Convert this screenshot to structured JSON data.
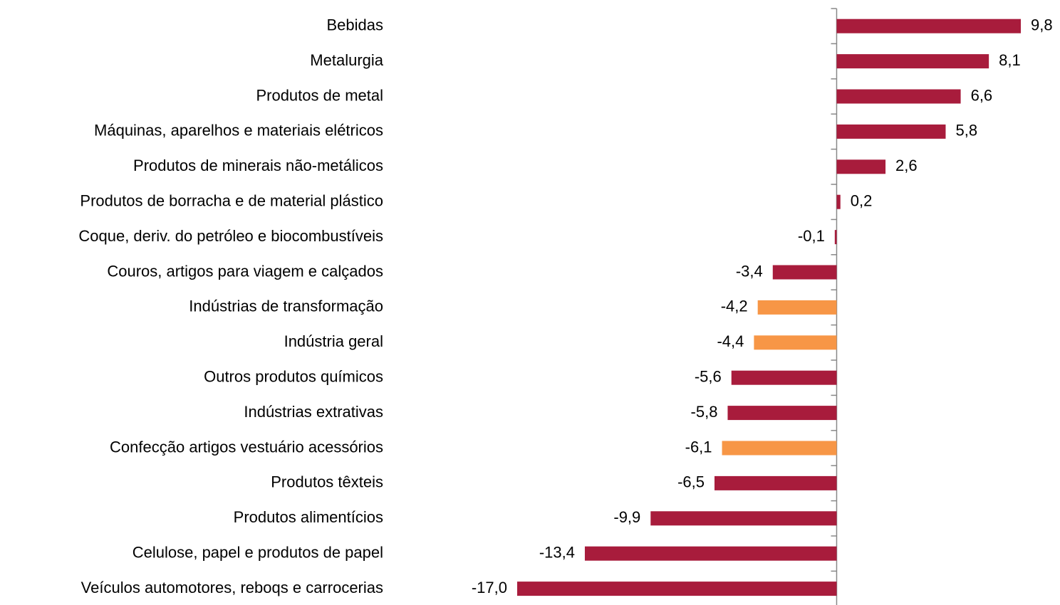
{
  "chart_data": {
    "type": "barh",
    "categories": [
      "Bebidas",
      "Metalurgia",
      "Produtos de metal",
      "Máquinas, aparelhos e materiais elétricos",
      "Produtos de minerais não-metálicos",
      "Produtos de borracha e de material plástico",
      "Coque, deriv. do petróleo e biocombustíveis",
      "Couros, artigos para viagem e calçados",
      "Indústrias de transformação",
      "Indústria geral",
      "Outros produtos químicos",
      "Indústrias extrativas",
      "Confecção artigos vestuário acessórios",
      "Produtos têxteis",
      "Produtos alimentícios",
      "Celulose, papel e produtos de papel",
      "Veículos automotores, reboqs e carrocerias"
    ],
    "values": [
      9.8,
      8.1,
      6.6,
      5.8,
      2.6,
      0.2,
      -0.1,
      -3.4,
      -4.2,
      -4.4,
      -5.6,
      -5.8,
      -6.1,
      -6.5,
      -9.9,
      -13.4,
      -17.0
    ],
    "value_labels": [
      "9,8",
      "8,1",
      "6,6",
      "5,8",
      "2,6",
      "0,2",
      "-0,1",
      "-3,4",
      "-4,2",
      "-4,4",
      "-5,6",
      "-5,8",
      "-6,1",
      "-6,5",
      "-9,9",
      "-13,4",
      "-17,0"
    ],
    "colors": [
      "#a81c3c",
      "#a81c3c",
      "#a81c3c",
      "#a81c3c",
      "#a81c3c",
      "#a81c3c",
      "#a81c3c",
      "#a81c3c",
      "#f79646",
      "#f79646",
      "#a81c3c",
      "#a81c3c",
      "#f79646",
      "#a81c3c",
      "#a81c3c",
      "#a81c3c",
      "#a81c3c"
    ]
  }
}
